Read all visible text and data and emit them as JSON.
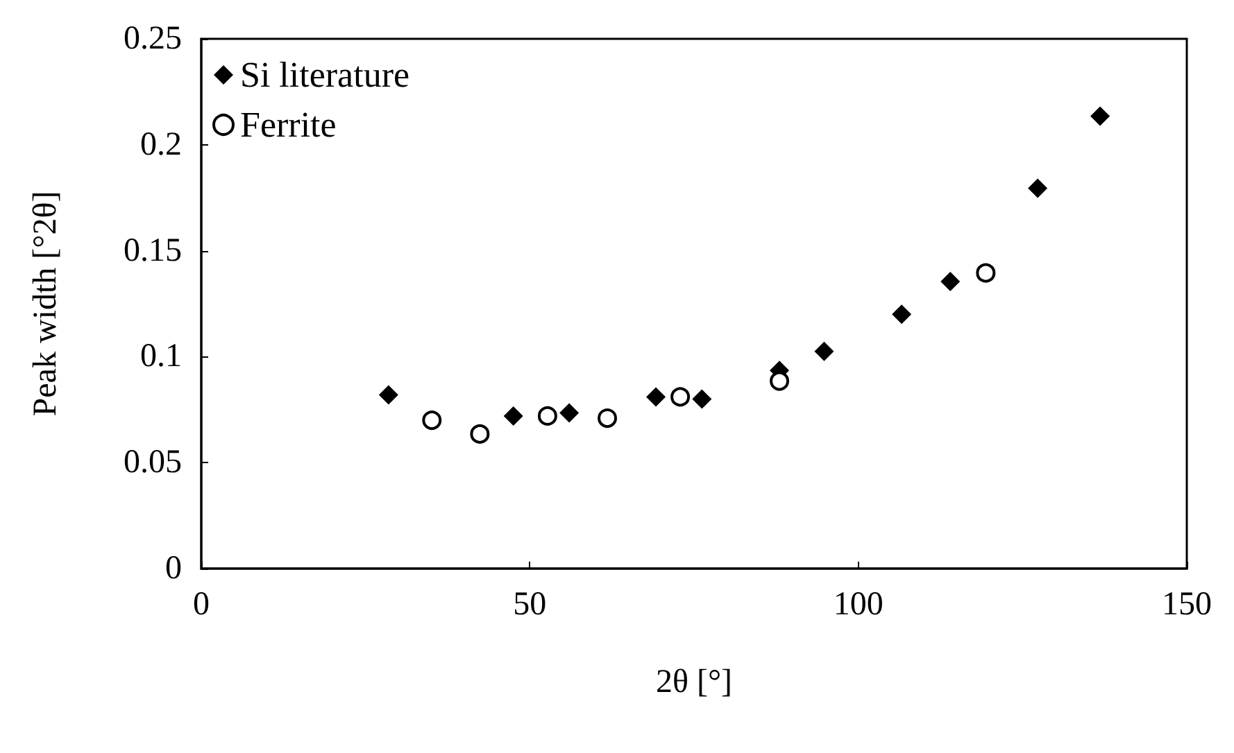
{
  "chart_data": {
    "type": "scatter",
    "xlabel": "2θ [°]",
    "ylabel": "Peak width [°2θ]",
    "xlim": [
      0,
      150
    ],
    "xticks": [
      0,
      50,
      100,
      150
    ],
    "ylim": [
      0,
      0.25
    ],
    "yticks": [
      0,
      0.05,
      0.1,
      0.15,
      0.2,
      0.25
    ],
    "grid": false,
    "legend": "top left",
    "series": [
      {
        "name": "Si literature",
        "color": "#000000",
        "marker": "diamond",
        "x": [
          28.5,
          47.5,
          56.0,
          69.2,
          76.2,
          88.0,
          94.8,
          106.6,
          114.0,
          127.3,
          136.8
        ],
        "values": [
          0.082,
          0.072,
          0.0735,
          0.081,
          0.08,
          0.0935,
          0.1025,
          0.12,
          0.1355,
          0.1795,
          0.2135
        ]
      },
      {
        "name": "Ferrite",
        "color": "#000000",
        "marker": "circle",
        "x": [
          35.1,
          42.4,
          52.7,
          61.8,
          72.9,
          88.0,
          119.4
        ],
        "values": [
          0.07,
          0.0635,
          0.072,
          0.071,
          0.081,
          0.0885,
          0.1395
        ]
      }
    ]
  }
}
